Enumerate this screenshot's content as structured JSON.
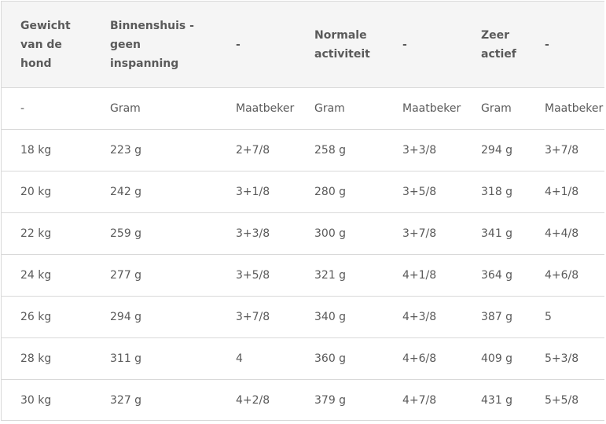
{
  "table": {
    "header": [
      "Gewicht van de hond",
      "Binnenshuis - geen inspanning",
      "-",
      "Normale activiteit",
      "-",
      "Zeer actief",
      "-"
    ],
    "subheader": [
      "-",
      "Gram",
      "Maatbeker",
      "Gram",
      "Maatbeker",
      "Gram",
      "Maatbeker"
    ],
    "rows": [
      [
        "18 kg",
        "223 g",
        "2+7/8",
        "258 g",
        "3+3/8",
        "294 g",
        "3+7/8"
      ],
      [
        "20 kg",
        "242 g",
        "3+1/8",
        "280 g",
        "3+5/8",
        "318 g",
        "4+1/8"
      ],
      [
        "22 kg",
        "259 g",
        "3+3/8",
        "300 g",
        "3+7/8",
        "341 g",
        "4+4/8"
      ],
      [
        "24 kg",
        "277 g",
        "3+5/8",
        "321 g",
        "4+1/8",
        "364 g",
        "4+6/8"
      ],
      [
        "26 kg",
        "294 g",
        "3+7/8",
        "340 g",
        "4+3/8",
        "387 g",
        "5"
      ],
      [
        "28 kg",
        "311 g",
        "4",
        "360 g",
        "4+6/8",
        "409 g",
        "5+3/8"
      ],
      [
        "30 kg",
        "327 g",
        "4+2/8",
        "379 g",
        "4+7/8",
        "431 g",
        "5+5/8"
      ]
    ]
  }
}
